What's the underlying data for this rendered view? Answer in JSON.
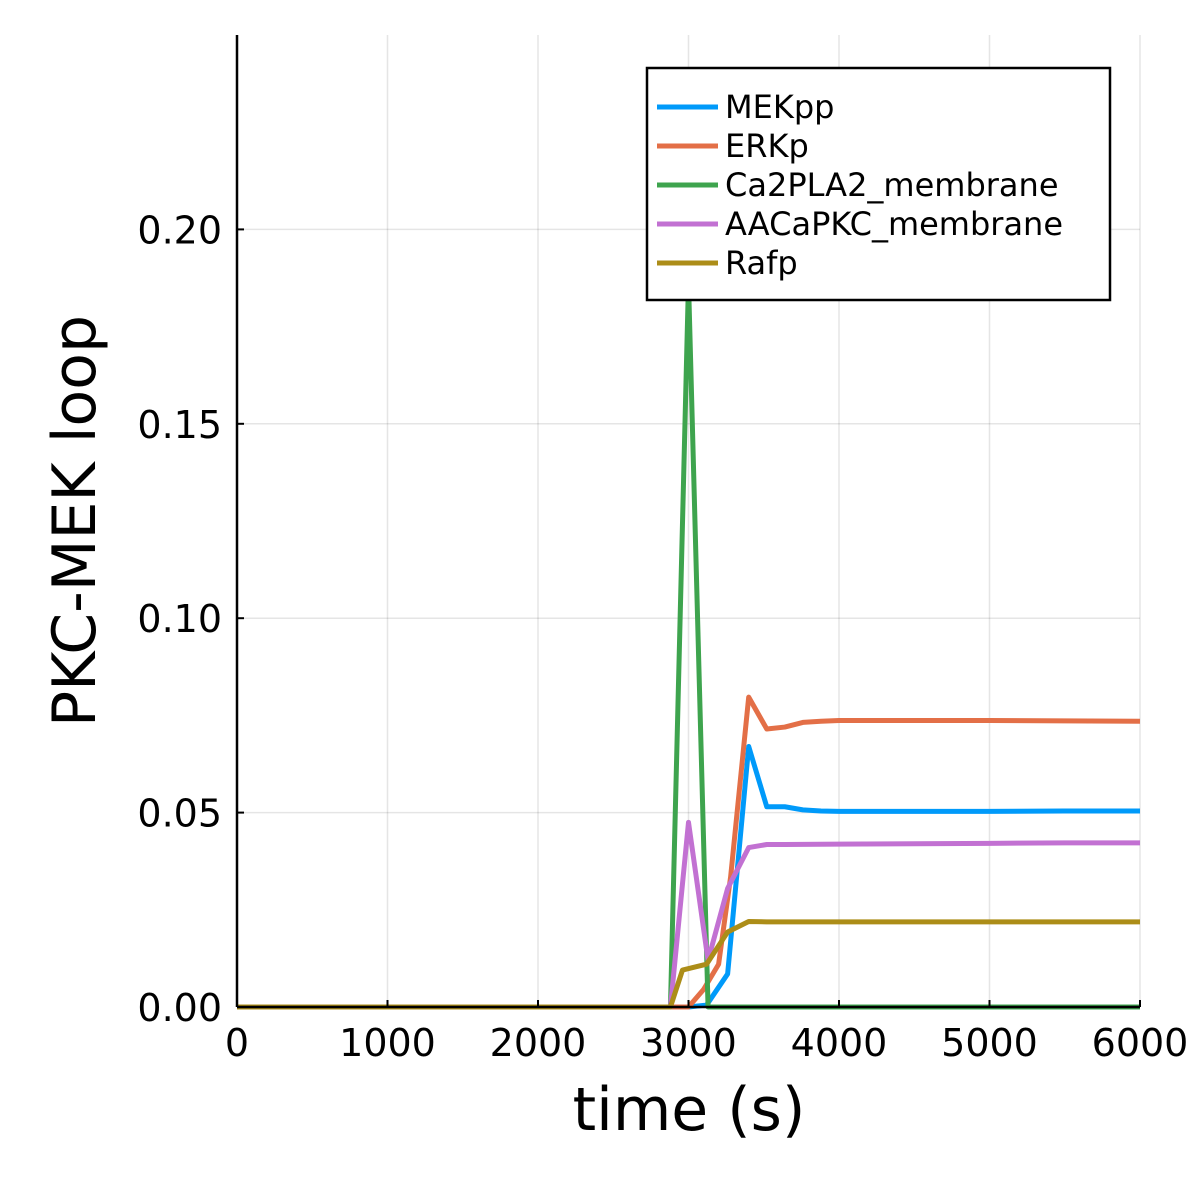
{
  "chart_data": {
    "type": "line",
    "title": "",
    "xlabel": "time (s)",
    "ylabel": "PKC-MEK loop",
    "xlim": [
      0,
      6000
    ],
    "ylim": [
      0,
      0.25
    ],
    "xticks": [
      0,
      1000,
      2000,
      3000,
      4000,
      5000,
      6000
    ],
    "xtick_labels": [
      "0",
      "1000",
      "2000",
      "3000",
      "4000",
      "5000",
      "6000"
    ],
    "yticks": [
      0,
      0.05,
      0.1,
      0.15,
      0.2
    ],
    "ytick_labels": [
      "0.00",
      "0.05",
      "0.10",
      "0.15",
      "0.20"
    ],
    "grid": true,
    "legend_position": "top-right",
    "series": [
      {
        "name": "MEKpp",
        "color": "#009AFA",
        "x": [
          0,
          200,
          1000,
          2000,
          2900,
          3000,
          3120,
          3260,
          3400,
          3520,
          3640,
          3760,
          3880,
          4000,
          4500,
          5000,
          5500,
          6000
        ],
        "y": [
          0,
          0,
          0,
          0,
          0,
          0,
          0.0005,
          0.0085,
          0.067,
          0.0515,
          0.0515,
          0.0507,
          0.0504,
          0.0503,
          0.0503,
          0.0503,
          0.0504,
          0.0504
        ]
      },
      {
        "name": "ERKp",
        "color": "#E36F47",
        "x": [
          0,
          200,
          1000,
          2000,
          2900,
          3000,
          3100,
          3200,
          3280,
          3400,
          3520,
          3640,
          3760,
          3880,
          4000,
          4500,
          5000,
          5500,
          6000
        ],
        "y": [
          0,
          0,
          0,
          0,
          0,
          0,
          0.0045,
          0.011,
          0.0335,
          0.0797,
          0.0715,
          0.072,
          0.0732,
          0.0735,
          0.0737,
          0.0737,
          0.0737,
          0.0736,
          0.0735
        ]
      },
      {
        "name": "Ca2PLA2_membrane",
        "color": "#3EA44E",
        "x": [
          0,
          200,
          1000,
          2000,
          2880,
          3000,
          3130,
          3300,
          4000,
          5000,
          6000
        ],
        "y": [
          0,
          0,
          0,
          0,
          0,
          0.1865,
          0,
          0,
          0,
          0,
          0
        ]
      },
      {
        "name": "AACaPKC_membrane",
        "color": "#C271D2",
        "x": [
          0,
          200,
          1000,
          2000,
          2880,
          3000,
          3130,
          3260,
          3400,
          3520,
          3640,
          4000,
          4500,
          5000,
          5500,
          6000
        ],
        "y": [
          0,
          0,
          0,
          0,
          0,
          0.0475,
          0.012,
          0.0305,
          0.041,
          0.0418,
          0.0418,
          0.0419,
          0.042,
          0.0421,
          0.0422,
          0.0422
        ]
      },
      {
        "name": "Rafp",
        "color": "#AC8D18",
        "x": [
          0,
          200,
          1000,
          2000,
          2880,
          2960,
          3120,
          3260,
          3400,
          3520,
          4000,
          4500,
          5000,
          5500,
          6000
        ],
        "y": [
          0,
          0,
          0,
          0,
          0,
          0.0095,
          0.011,
          0.0193,
          0.022,
          0.0219,
          0.0219,
          0.0219,
          0.0219,
          0.0219,
          0.0219
        ]
      }
    ]
  }
}
